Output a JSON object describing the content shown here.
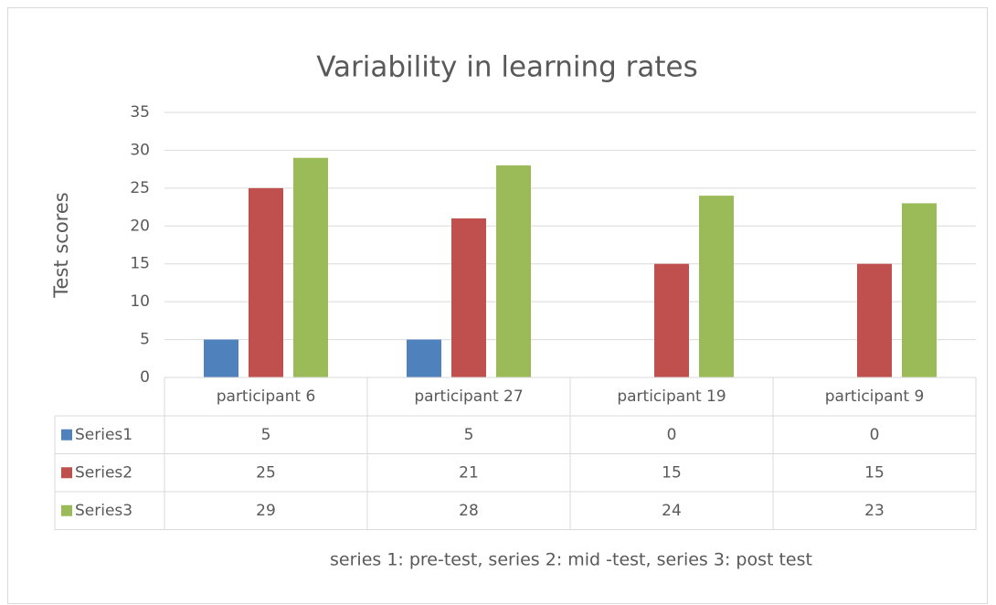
{
  "chart_data": {
    "type": "bar",
    "title": "Variability in learning rates",
    "ylabel": "Test scores",
    "annotation": "series 1: pre-test, series 2: mid -test, series 3: post test",
    "categories": [
      "participant 6",
      "participant 27",
      "participant 19",
      "participant 9"
    ],
    "series": [
      {
        "name": "Series1",
        "color": "#4f81bd",
        "values": [
          5,
          5,
          0,
          0
        ]
      },
      {
        "name": "Series2",
        "color": "#c0504d",
        "values": [
          25,
          21,
          15,
          15
        ]
      },
      {
        "name": "Series3",
        "color": "#9bbb59",
        "values": [
          29,
          28,
          24,
          23
        ]
      }
    ],
    "ylim": [
      0,
      35
    ],
    "yticks": [
      0,
      5,
      10,
      15,
      20,
      25,
      30,
      35
    ],
    "grid": true,
    "data_table": true
  }
}
